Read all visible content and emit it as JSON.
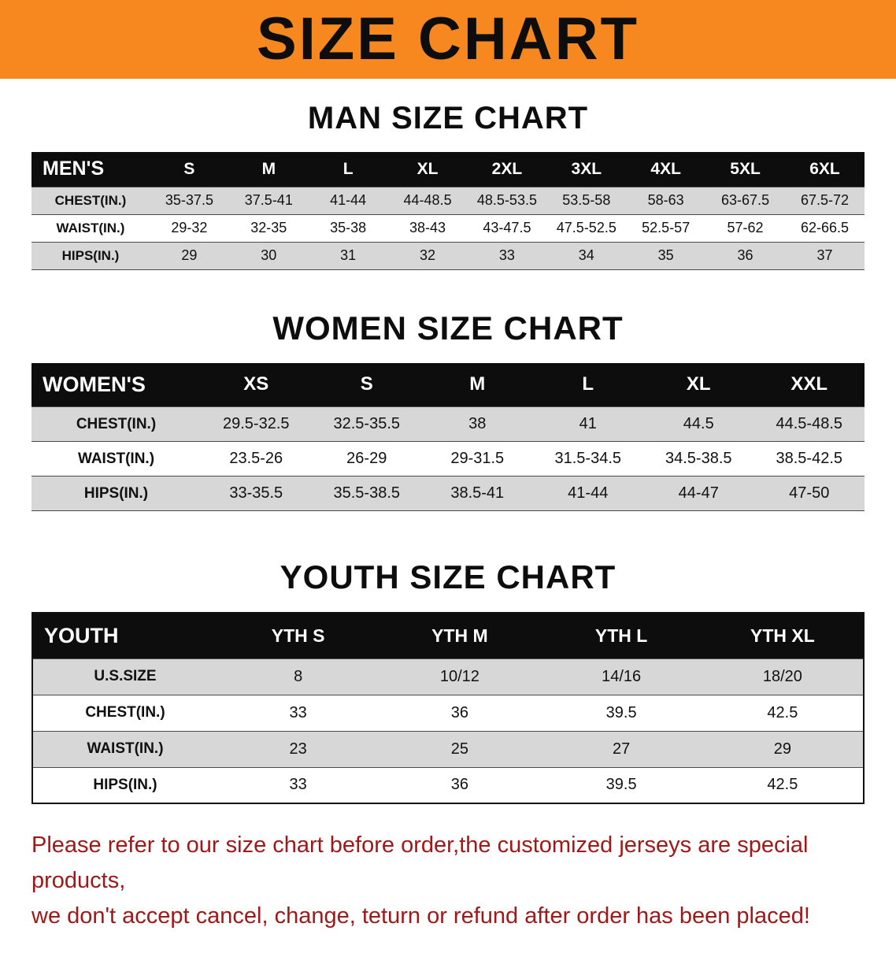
{
  "banner": {
    "title": "SIZE CHART",
    "bg_color": "#f6881f",
    "text_color": "#0d0d0d"
  },
  "colors": {
    "table_header_bg": "#0d0d0d",
    "table_header_text": "#ffffff",
    "row_stripe": "#d7d7d7",
    "note_text": "#a01818"
  },
  "sections": [
    {
      "id": "men",
      "heading": "MAN SIZE CHART",
      "corner": "MEN'S",
      "columns": [
        "S",
        "M",
        "L",
        "XL",
        "2XL",
        "3XL",
        "4XL",
        "5XL",
        "6XL"
      ],
      "rows": [
        {
          "label": "CHEST(IN.)",
          "values": [
            "35-37.5",
            "37.5-41",
            "41-44",
            "44-48.5",
            "48.5-53.5",
            "53.5-58",
            "58-63",
            "63-67.5",
            "67.5-72"
          ]
        },
        {
          "label": "WAIST(IN.)",
          "values": [
            "29-32",
            "32-35",
            "35-38",
            "38-43",
            "43-47.5",
            "47.5-52.5",
            "52.5-57",
            "57-62",
            "62-66.5"
          ]
        },
        {
          "label": "HIPS(IN.)",
          "values": [
            "29",
            "30",
            "31",
            "32",
            "33",
            "34",
            "35",
            "36",
            "37"
          ]
        }
      ]
    },
    {
      "id": "women",
      "heading": "WOMEN SIZE CHART",
      "corner": "WOMEN'S",
      "columns": [
        "XS",
        "S",
        "M",
        "L",
        "XL",
        "XXL"
      ],
      "rows": [
        {
          "label": "CHEST(IN.)",
          "values": [
            "29.5-32.5",
            "32.5-35.5",
            "38",
            "41",
            "44.5",
            "44.5-48.5"
          ]
        },
        {
          "label": "WAIST(IN.)",
          "values": [
            "23.5-26",
            "26-29",
            "29-31.5",
            "31.5-34.5",
            "34.5-38.5",
            "38.5-42.5"
          ]
        },
        {
          "label": "HIPS(IN.)",
          "values": [
            "33-35.5",
            "35.5-38.5",
            "38.5-41",
            "41-44",
            "44-47",
            "47-50"
          ]
        }
      ]
    },
    {
      "id": "youth",
      "heading": "YOUTH SIZE CHART",
      "corner": "YOUTH",
      "columns": [
        "YTH S",
        "YTH M",
        "YTH L",
        "YTH XL"
      ],
      "rows": [
        {
          "label": "U.S.SIZE",
          "values": [
            "8",
            "10/12",
            "14/16",
            "18/20"
          ]
        },
        {
          "label": "CHEST(IN.)",
          "values": [
            "33",
            "36",
            "39.5",
            "42.5"
          ]
        },
        {
          "label": "WAIST(IN.)",
          "values": [
            "23",
            "25",
            "27",
            "29"
          ]
        },
        {
          "label": "HIPS(IN.)",
          "values": [
            "33",
            "36",
            "39.5",
            "42.5"
          ]
        }
      ]
    }
  ],
  "note": {
    "line1": "Please refer to our size chart before order,the customized jerseys are special products,",
    "line2": "we don't accept cancel, change, teturn or refund after order has been placed!"
  }
}
